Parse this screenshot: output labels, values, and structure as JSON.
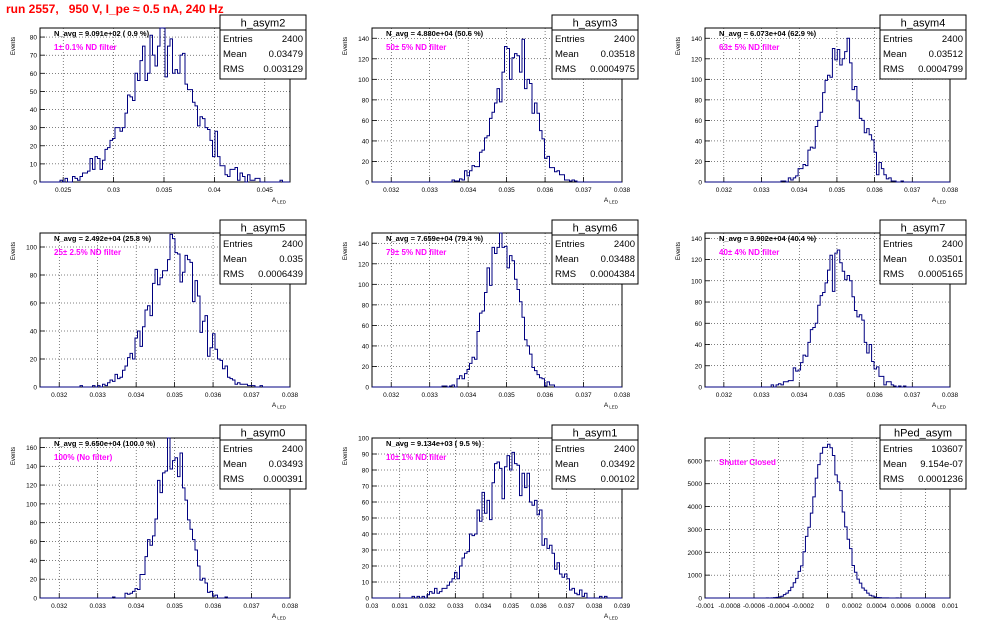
{
  "page_title": "run 2557,   950 V, I_pe ≈ 0.5 nA, 240 Hz",
  "colors": {
    "histogram": "#000080",
    "annotation": "#ff00ff",
    "title": "#ff0000",
    "grid": "#000000"
  },
  "stat_labels": {
    "entries": "Entries",
    "mean": "Mean",
    "rms": "RMS"
  },
  "chart_data": [
    {
      "type": "bar",
      "name": "h_asym2",
      "ylabel": "Events",
      "xlabel": "A_LED",
      "grid": true,
      "navg": "N_avg = 9.091e+02 ( 0.9 %)",
      "note": "1± 0.1% ND filter",
      "stats": {
        "entries": "2400",
        "mean": "0.03479",
        "rms": "0.003129"
      },
      "xlim": [
        0.0227,
        0.0475
      ],
      "ylim": [
        0,
        85
      ],
      "xticks": [
        "0.025",
        "0.03",
        "0.035",
        "0.04",
        "0.045"
      ],
      "xtick_values": [
        0.025,
        0.03,
        0.035,
        0.04,
        0.045
      ],
      "yticks": [
        0,
        10,
        20,
        30,
        40,
        50,
        60,
        70,
        80
      ],
      "dist": {
        "mean": 0.03479,
        "sigma": 0.003129,
        "entries": 2400,
        "bins": 100,
        "seed": 11
      }
    },
    {
      "type": "bar",
      "name": "h_asym3",
      "ylabel": "Events",
      "xlabel": "A_LED",
      "grid": true,
      "navg": "N_avg = 4.880e+04 (50.6 %)",
      "note": "50± 5% ND filter",
      "stats": {
        "entries": "2400",
        "mean": "0.03518",
        "rms": "0.0004975"
      },
      "xlim": [
        0.0315,
        0.038
      ],
      "ylim": [
        0,
        150
      ],
      "xticks": [
        "0.032",
        "0.033",
        "0.034",
        "0.035",
        "0.036",
        "0.037",
        "0.038"
      ],
      "xtick_values": [
        0.032,
        0.033,
        0.034,
        0.035,
        0.036,
        0.037,
        0.038
      ],
      "yticks": [
        0,
        20,
        40,
        60,
        80,
        100,
        120,
        140
      ],
      "dist": {
        "mean": 0.03518,
        "sigma": 0.0004975,
        "entries": 2400,
        "bins": 100,
        "seed": 23
      }
    },
    {
      "type": "bar",
      "name": "h_asym4",
      "ylabel": "Events",
      "xlabel": "A_LED",
      "grid": true,
      "navg": "N_avg = 6.073e+04 (62.9 %)",
      "note": "63± 5% ND filter",
      "stats": {
        "entries": "2400",
        "mean": "0.03512",
        "rms": "0.0004799"
      },
      "xlim": [
        0.0315,
        0.038
      ],
      "ylim": [
        0,
        150
      ],
      "xticks": [
        "0.032",
        "0.033",
        "0.034",
        "0.035",
        "0.036",
        "0.037",
        "0.038"
      ],
      "xtick_values": [
        0.032,
        0.033,
        0.034,
        0.035,
        0.036,
        0.037,
        0.038
      ],
      "yticks": [
        0,
        20,
        40,
        60,
        80,
        100,
        120,
        140
      ],
      "dist": {
        "mean": 0.03512,
        "sigma": 0.0004799,
        "entries": 2400,
        "bins": 100,
        "seed": 37
      }
    },
    {
      "type": "bar",
      "name": "h_asym5",
      "ylabel": "Events",
      "xlabel": "A_LED",
      "grid": true,
      "navg": "N_avg = 2.492e+04 (25.8 %)",
      "note": "25± 2.5% ND filter",
      "stats": {
        "entries": "2400",
        "mean": "0.035",
        "rms": "0.0006439"
      },
      "xlim": [
        0.0315,
        0.038
      ],
      "ylim": [
        0,
        110
      ],
      "xticks": [
        "0.032",
        "0.033",
        "0.034",
        "0.035",
        "0.036",
        "0.037",
        "0.038"
      ],
      "xtick_values": [
        0.032,
        0.033,
        0.034,
        0.035,
        0.036,
        0.037,
        0.038
      ],
      "yticks": [
        0,
        20,
        40,
        60,
        80,
        100
      ],
      "dist": {
        "mean": 0.035,
        "sigma": 0.0006439,
        "entries": 2400,
        "bins": 100,
        "seed": 41
      }
    },
    {
      "type": "bar",
      "name": "h_asym6",
      "ylabel": "Events",
      "xlabel": "A_LED",
      "grid": true,
      "navg": "N_avg = 7.659e+04 (79.4 %)",
      "note": "79± 5% ND filter",
      "stats": {
        "entries": "2400",
        "mean": "0.03488",
        "rms": "0.0004384"
      },
      "xlim": [
        0.0315,
        0.038
      ],
      "ylim": [
        0,
        150
      ],
      "xticks": [
        "0.032",
        "0.033",
        "0.034",
        "0.035",
        "0.036",
        "0.037",
        "0.038"
      ],
      "xtick_values": [
        0.032,
        0.033,
        0.034,
        0.035,
        0.036,
        0.037,
        0.038
      ],
      "yticks": [
        0,
        20,
        40,
        60,
        80,
        100,
        120,
        140
      ],
      "dist": {
        "mean": 0.03488,
        "sigma": 0.0004384,
        "entries": 2400,
        "bins": 100,
        "seed": 53
      }
    },
    {
      "type": "bar",
      "name": "h_asym7",
      "ylabel": "Events",
      "xlabel": "A_LED",
      "grid": true,
      "navg": "N_avg = 3.902e+04 (40.4 %)",
      "note": "40± 4% ND filter",
      "stats": {
        "entries": "2400",
        "mean": "0.03501",
        "rms": "0.0005165"
      },
      "xlim": [
        0.0315,
        0.038
      ],
      "ylim": [
        0,
        145
      ],
      "xticks": [
        "0.032",
        "0.033",
        "0.034",
        "0.035",
        "0.036",
        "0.037",
        "0.038"
      ],
      "xtick_values": [
        0.032,
        0.033,
        0.034,
        0.035,
        0.036,
        0.037,
        0.038
      ],
      "yticks": [
        0,
        20,
        40,
        60,
        80,
        100,
        120,
        140
      ],
      "dist": {
        "mean": 0.03501,
        "sigma": 0.0005165,
        "entries": 2400,
        "bins": 100,
        "seed": 67
      }
    },
    {
      "type": "bar",
      "name": "h_asym0",
      "ylabel": "Events",
      "xlabel": "A_LED",
      "grid": true,
      "navg": "N_avg = 9.650e+04 (100.0 %)",
      "note": "100% (No filter)",
      "stats": {
        "entries": "2400",
        "mean": "0.03493",
        "rms": "0.000391"
      },
      "xlim": [
        0.0315,
        0.038
      ],
      "ylim": [
        0,
        170
      ],
      "xticks": [
        "0.032",
        "0.033",
        "0.034",
        "0.035",
        "0.036",
        "0.037",
        "0.038"
      ],
      "xtick_values": [
        0.032,
        0.033,
        0.034,
        0.035,
        0.036,
        0.037,
        0.038
      ],
      "yticks": [
        0,
        20,
        40,
        60,
        80,
        100,
        120,
        140,
        160
      ],
      "dist": {
        "mean": 0.03493,
        "sigma": 0.000391,
        "entries": 2400,
        "bins": 100,
        "seed": 79
      }
    },
    {
      "type": "bar",
      "name": "h_asym1",
      "ylabel": "Events",
      "xlabel": "A_LED",
      "grid": true,
      "navg": "N_avg = 9.134e+03 ( 9.5 %)",
      "note": "10± 1% ND filter",
      "stats": {
        "entries": "2400",
        "mean": "0.03492",
        "rms": "0.00102"
      },
      "xlim": [
        0.03,
        0.039
      ],
      "ylim": [
        0,
        100
      ],
      "xticks": [
        "0.03",
        "0.031",
        "0.032",
        "0.033",
        "0.034",
        "0.035",
        "0.036",
        "0.037",
        "0.038",
        "0.039"
      ],
      "xtick_values": [
        0.03,
        0.031,
        0.032,
        0.033,
        0.034,
        0.035,
        0.036,
        0.037,
        0.038,
        0.039
      ],
      "yticks": [
        0,
        10,
        20,
        30,
        40,
        50,
        60,
        70,
        80,
        90,
        100
      ],
      "dist": {
        "mean": 0.03492,
        "sigma": 0.00102,
        "entries": 2400,
        "bins": 100,
        "seed": 83
      }
    },
    {
      "type": "bar",
      "name": "hPed_asym",
      "ylabel": "",
      "xlabel": "",
      "grid": true,
      "navg": "",
      "note": "Shutter Closed",
      "stats": {
        "entries": "103607",
        "mean": "9.154e-07",
        "rms": "0.0001236"
      },
      "xlim": [
        -0.001,
        0.001
      ],
      "ylim": [
        0,
        7000
      ],
      "xticks": [
        "-0.001",
        "-0.0008",
        "-0.0006",
        "-0.0004",
        "-0.0002",
        "0",
        "0.0002",
        "0.0004",
        "0.0006",
        "0.0008",
        "0.001"
      ],
      "xtick_values": [
        -0.001,
        -0.0008,
        -0.0006,
        -0.0004,
        -0.0002,
        0,
        0.0002,
        0.0004,
        0.0006,
        0.0008,
        0.001
      ],
      "yticks": [
        0,
        1000,
        2000,
        3000,
        4000,
        5000,
        6000
      ],
      "dist": {
        "mean": 9.15e-07,
        "sigma": 0.0001236,
        "entries": 103607,
        "bins": 100,
        "seed": 97
      }
    }
  ]
}
